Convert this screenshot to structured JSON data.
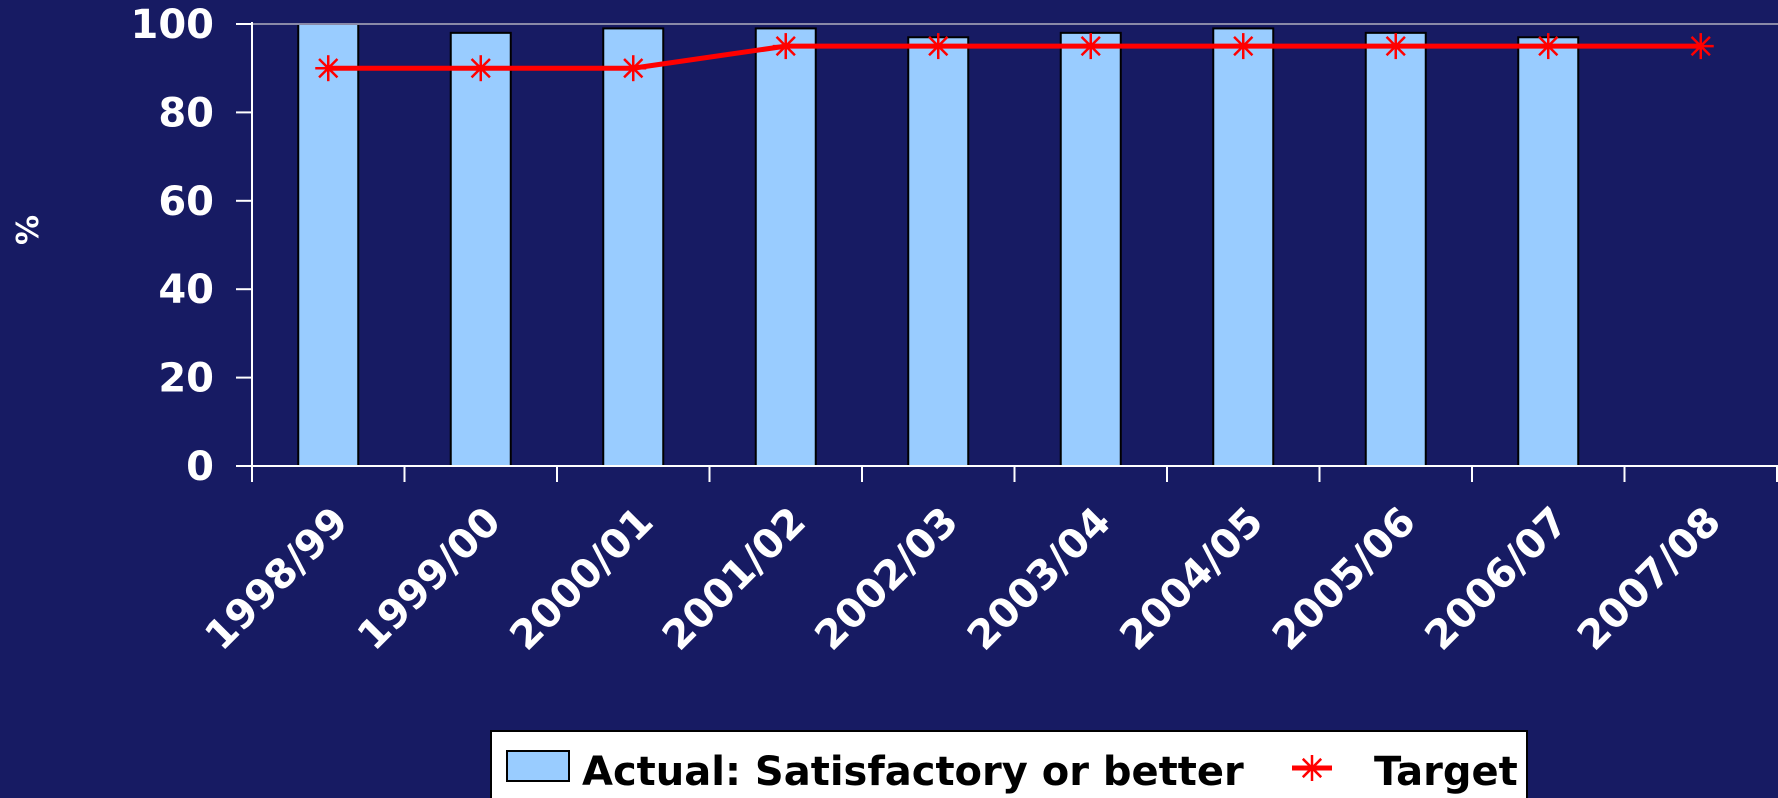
{
  "colors": {
    "background": "#171b63",
    "bar_fill": "#99ccff",
    "bar_stroke": "#000000",
    "target_line": "#ff0000",
    "axis": "#ffffff",
    "gridline": "#8a8aa8",
    "legend_bg": "#ffffff"
  },
  "chart_data": {
    "type": "bar",
    "title": "",
    "xlabel": "",
    "ylabel": "%",
    "ylim": [
      0,
      100
    ],
    "yticks": [
      0,
      20,
      40,
      60,
      80,
      100
    ],
    "categories": [
      "1998/99",
      "1999/00",
      "2000/01",
      "2001/02",
      "2002/03",
      "2003/04",
      "2004/05",
      "2005/06",
      "2006/07",
      "2007/08"
    ],
    "series": [
      {
        "name": "Actual: Satisfactory or better",
        "type": "bar",
        "values": [
          100,
          98,
          99,
          99,
          97,
          98,
          99,
          98,
          97,
          null
        ]
      },
      {
        "name": "Target",
        "type": "line",
        "marker": "asterisk",
        "values": [
          90,
          90,
          90,
          95,
          95,
          95,
          95,
          95,
          95,
          95
        ]
      }
    ],
    "grid": "top-line-only",
    "legend_position": "bottom"
  }
}
